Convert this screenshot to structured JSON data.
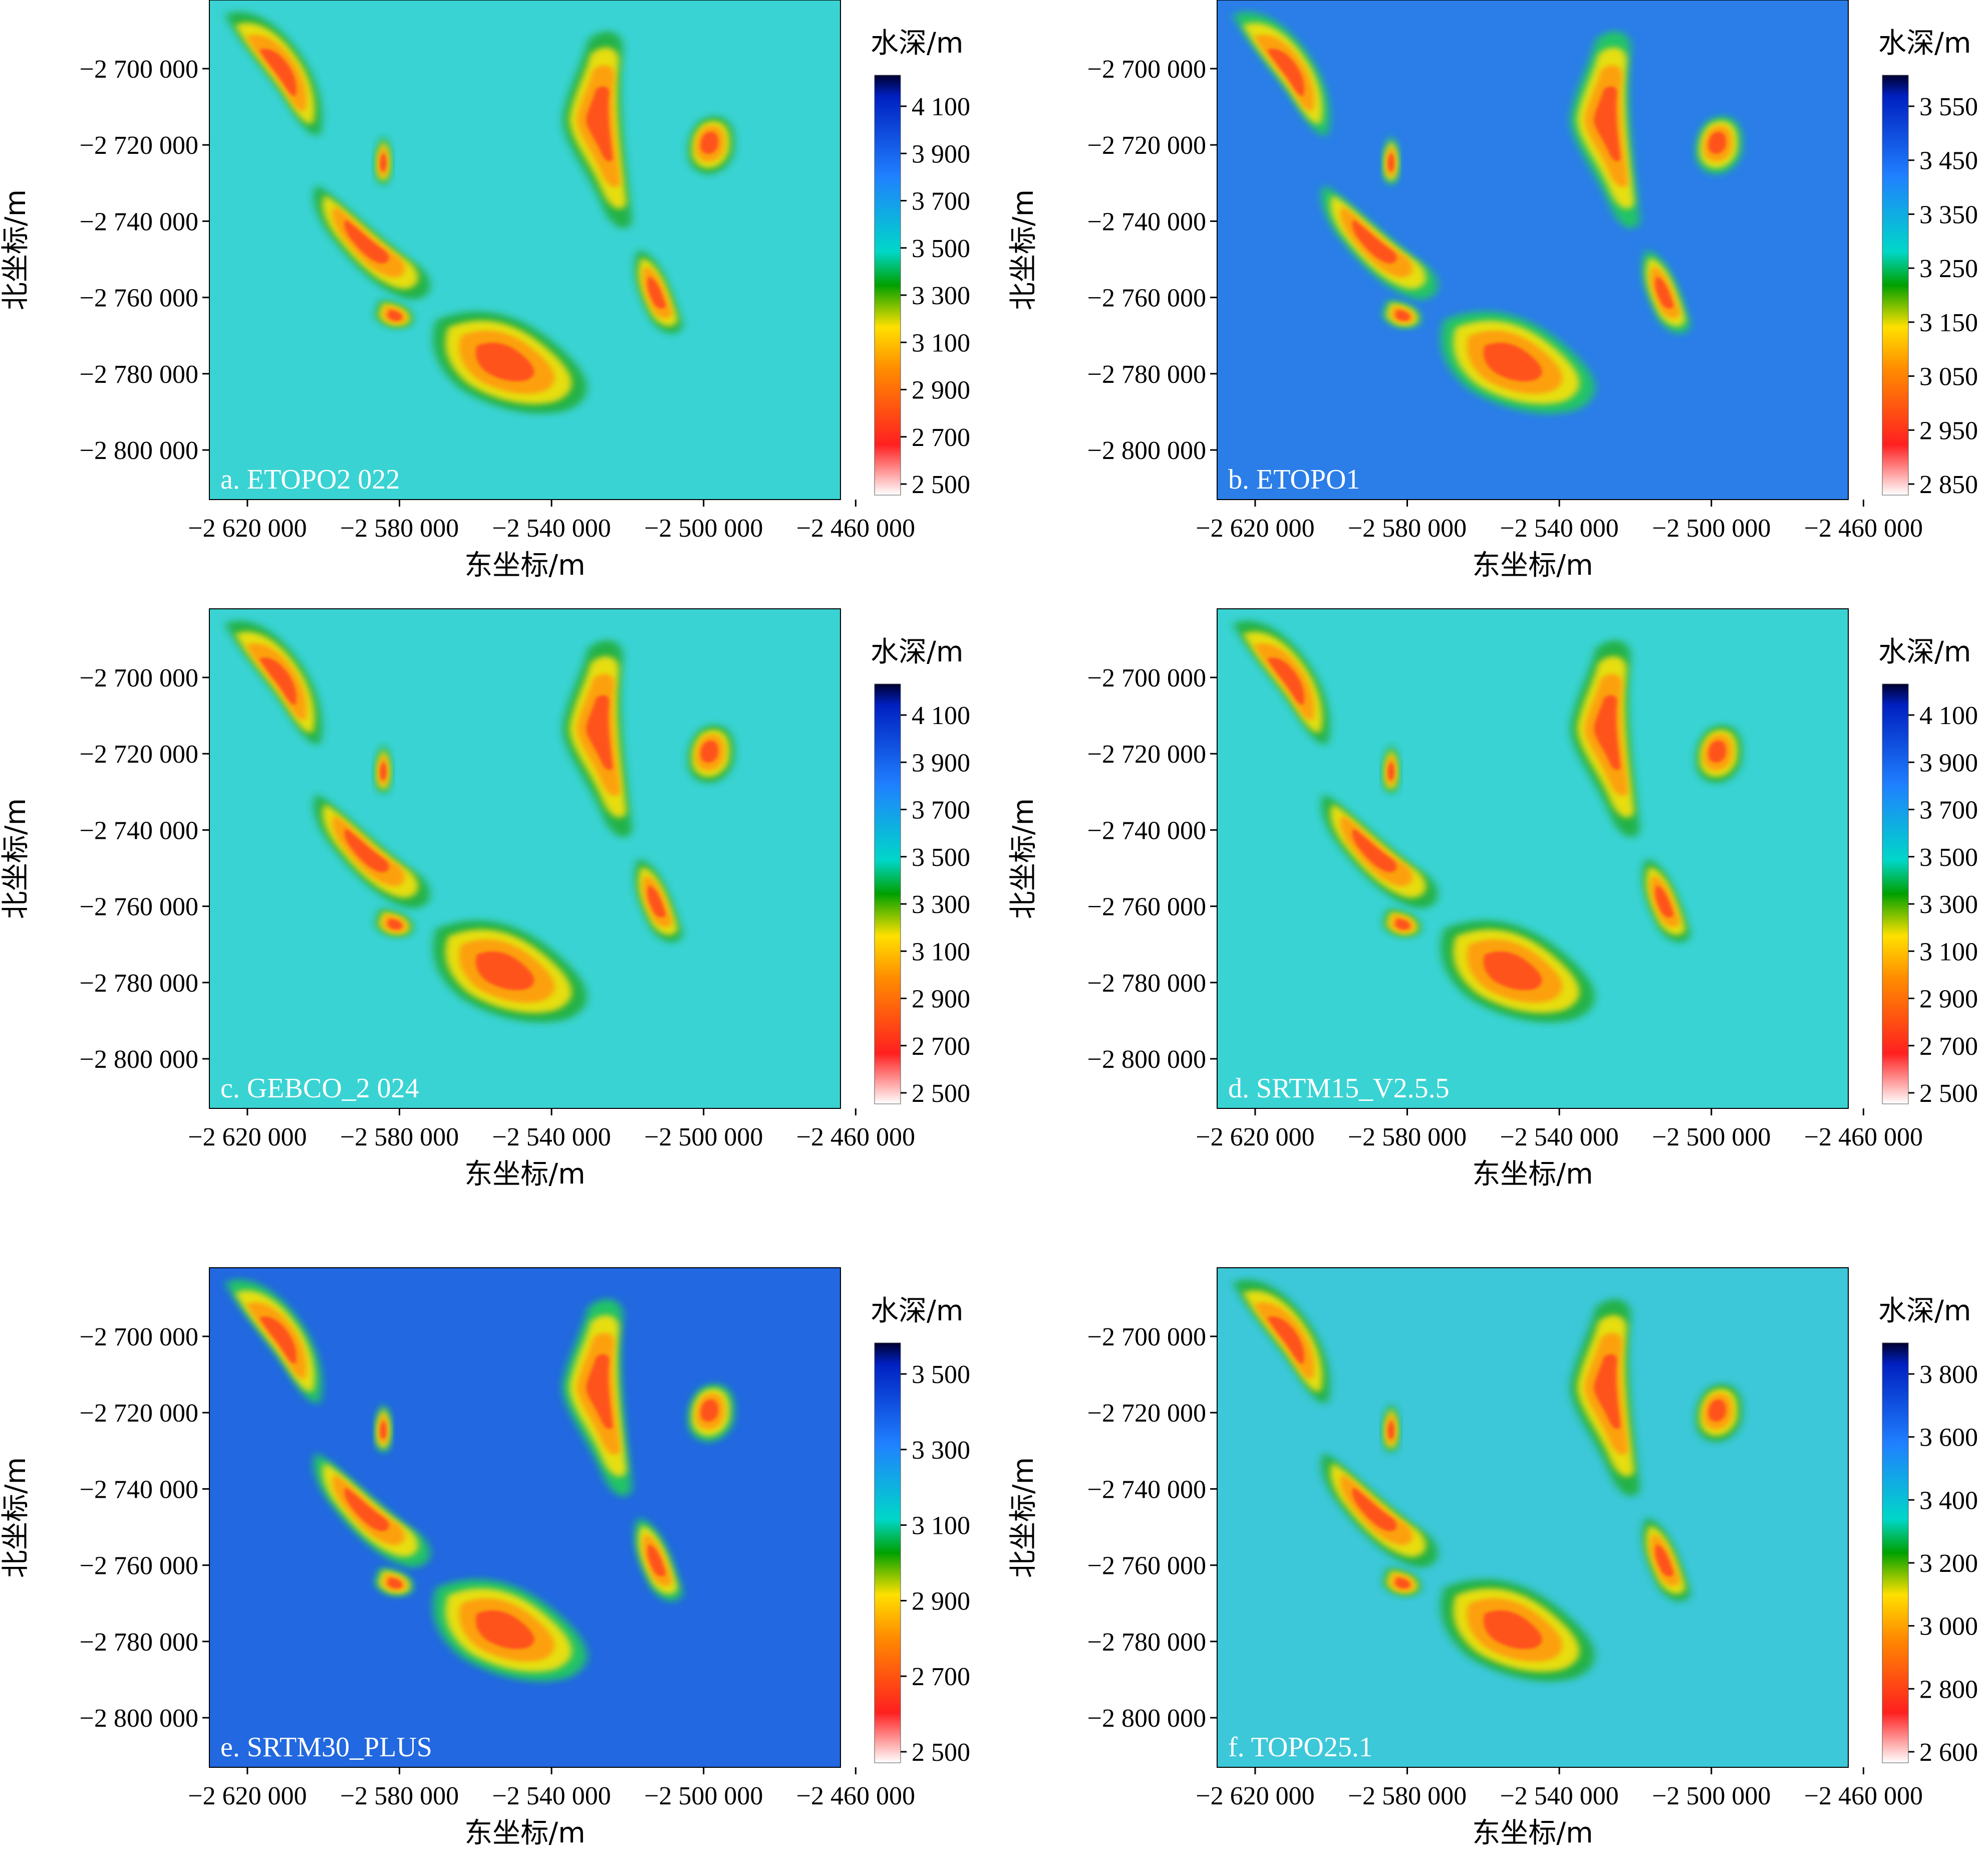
{
  "figure": {
    "x_axis_label": "东坐标/m",
    "y_axis_label": "北坐标/m",
    "colorbar_title": "水深/m",
    "x_tick_labels": [
      "−2 620 000",
      "−2 580 000",
      "−2 540 000",
      "−2 500 000",
      "−2 460 000"
    ],
    "y_tick_labels": [
      "−2 700 000",
      "−2 720 000",
      "−2 740 000",
      "−2 760 000",
      "−2 780 000",
      "−2 800 000"
    ]
  },
  "chart_data": {
    "type": "heatmap",
    "xlim": [
      -2630000,
      -2464000
    ],
    "ylim": [
      -2813000,
      -2682000
    ],
    "x_ticks": [
      -2620000,
      -2580000,
      -2540000,
      -2500000,
      -2460000
    ],
    "y_ticks": [
      -2700000,
      -2720000,
      -2740000,
      -2760000,
      -2780000,
      -2800000
    ],
    "colormap": [
      "#ffffff",
      "#ff2020",
      "#ff8c00",
      "#ffe000",
      "#00a000",
      "#00d7c8",
      "#2080ff",
      "#0020c0",
      "#000030"
    ],
    "panels": [
      {
        "label": "a. ETOPO2 022",
        "background": "#3ad3d3",
        "colorbar_ticks": [
          "4 100",
          "3 900",
          "3 700",
          "3 500",
          "3 300",
          "3 100",
          "2 900",
          "2 700",
          "2 500"
        ]
      },
      {
        "label": "b. ETOPO1",
        "background": "#2b7ee8",
        "colorbar_ticks": [
          "3 550",
          "3 450",
          "3 350",
          "3 250",
          "3 150",
          "3 050",
          "2 950",
          "2 850"
        ]
      },
      {
        "label": "c. GEBCO_2 024",
        "background": "#3ad3d3",
        "colorbar_ticks": [
          "4 100",
          "3 900",
          "3 700",
          "3 500",
          "3 300",
          "3 100",
          "2 900",
          "2 700",
          "2 500"
        ]
      },
      {
        "label": "d. SRTM15_V2.5.5",
        "background": "#3ad3d3",
        "colorbar_ticks": [
          "4 100",
          "3 900",
          "3 700",
          "3 500",
          "3 300",
          "3 100",
          "2 900",
          "2 700",
          "2 500"
        ]
      },
      {
        "label": "e. SRTM30_PLUS",
        "background": "#2268e0",
        "colorbar_ticks": [
          "3 500",
          "3 300",
          "3 100",
          "2 900",
          "2 700",
          "2 500"
        ]
      },
      {
        "label": "f. TOPO25.1",
        "background": "#3cc8d8",
        "colorbar_ticks": [
          "3 800",
          "3 600",
          "3 400",
          "3 200",
          "3 000",
          "2 800",
          "2 600"
        ]
      }
    ]
  }
}
